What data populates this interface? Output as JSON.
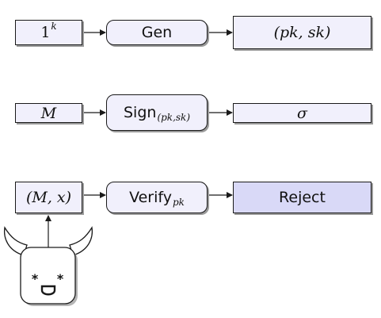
{
  "row1": {
    "input": {
      "base": "1",
      "sup": "k"
    },
    "process": {
      "label": "Gen"
    },
    "output": {
      "text": "(pk, sk)"
    }
  },
  "row2": {
    "input": {
      "text": "M"
    },
    "process": {
      "label": "Sign",
      "sub": "(pk,sk)"
    },
    "output": {
      "text": "σ"
    }
  },
  "row3": {
    "input": {
      "text": "(M, x)"
    },
    "process": {
      "label": "Verify",
      "sub": "pk"
    },
    "output": {
      "text": "Reject"
    }
  },
  "adversary": {
    "icon": "devil-adversary-icon",
    "eyes": "* *"
  },
  "colors": {
    "box_fill": "#f1f0fc",
    "reject_fill": "#d9d9f7",
    "stroke": "#1a1a1a",
    "shadow": "#9a9a9a"
  }
}
